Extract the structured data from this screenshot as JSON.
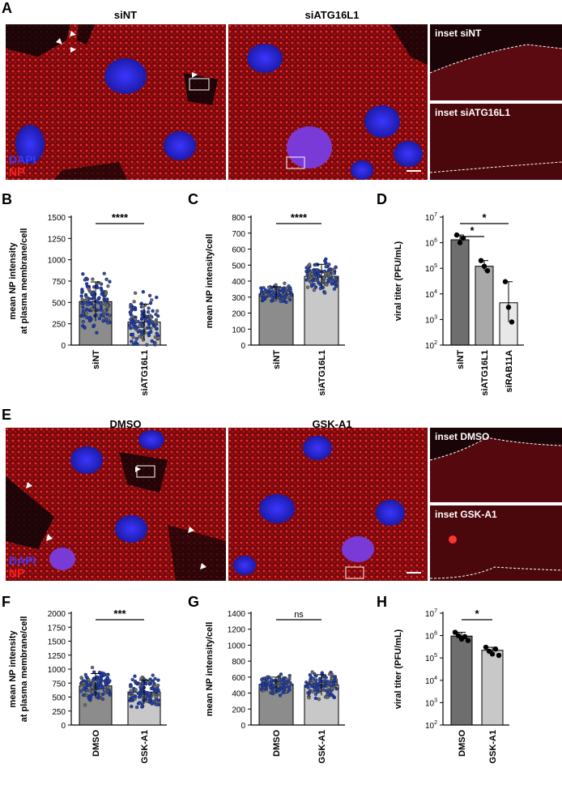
{
  "panel_labels": {
    "A": "A",
    "B": "B",
    "C": "C",
    "D": "D",
    "E": "E",
    "F": "F",
    "G": "G",
    "H": "H"
  },
  "panelA": {
    "title_left": "siNT",
    "title_mid": "siATG16L1",
    "inset_top": "inset siNT",
    "inset_bottom": "inset siATG16L1",
    "legend_dapi": "DAPI",
    "legend_np": "NP",
    "colors": {
      "dapi": "#2b2bff",
      "np": "#e01010",
      "background": "#0c0306"
    }
  },
  "panelE": {
    "title_left": "DMSO",
    "title_mid": "GSK-A1",
    "inset_top": "inset DMSO",
    "inset_bottom": "inset GSK-A1",
    "legend_dapi": "DAPI",
    "legend_np": "NP"
  },
  "chart_data": [
    {
      "id": "B",
      "type": "bar",
      "categories": [
        "siNT",
        "siATG16L1"
      ],
      "values": [
        510,
        270
      ],
      "errors": [
        230,
        210
      ],
      "ylabel_lines": [
        "mean NP intensity",
        "at plasma membrane/cell"
      ],
      "ylim": [
        0,
        1500
      ],
      "yticks": [
        0,
        250,
        500,
        750,
        1000,
        1250,
        1500
      ],
      "sig": [
        {
          "label": "****",
          "from": 0,
          "to": 1
        }
      ],
      "bar_colors": [
        "#8c8c8c",
        "#c8c8c8"
      ],
      "point_color": "#1f3fae",
      "log": false
    },
    {
      "id": "C",
      "type": "bar",
      "categories": [
        "siNT",
        "siATG16L1"
      ],
      "values": [
        320,
        430
      ],
      "errors": [
        45,
        75
      ],
      "ylabel_lines": [
        "mean NP intensity/cell"
      ],
      "ylim": [
        0,
        800
      ],
      "yticks": [
        0,
        100,
        200,
        300,
        400,
        500,
        600,
        700,
        800
      ],
      "sig": [
        {
          "label": "****",
          "from": 0,
          "to": 1
        }
      ],
      "bar_colors": [
        "#8c8c8c",
        "#c8c8c8"
      ],
      "point_color": "#1f3fae",
      "log": false
    },
    {
      "id": "D",
      "type": "bar",
      "categories": [
        "siNT",
        "siATG16L1",
        "siRAB11A"
      ],
      "values": [
        1300000,
        120000,
        4500
      ],
      "points": [
        [
          2000000,
          1000000,
          1500000
        ],
        [
          200000,
          120000,
          80000
        ],
        [
          30000,
          3000,
          800
        ]
      ],
      "ylabel_lines": [
        "viral titer (PFU/mL)"
      ],
      "ylim": [
        100,
        10000000
      ],
      "log": true,
      "yticks": [
        100,
        1000,
        10000,
        100000,
        1000000,
        10000000
      ],
      "sig": [
        {
          "label": "*",
          "from": 0,
          "to": 1
        },
        {
          "label": "*",
          "from": 0,
          "to": 2
        }
      ],
      "bar_colors": [
        "#6e6e6e",
        "#a8a8a8",
        "#e8e8e8"
      ]
    },
    {
      "id": "F",
      "type": "bar",
      "categories": [
        "DMSO",
        "GSK-A1"
      ],
      "values": [
        700,
        590
      ],
      "errors": [
        220,
        210
      ],
      "ylabel_lines": [
        "mean NP intensity",
        "at plasma membrane/cell"
      ],
      "ylim": [
        0,
        2000
      ],
      "yticks": [
        0,
        250,
        500,
        750,
        1000,
        1250,
        1500,
        1750,
        2000
      ],
      "sig": [
        {
          "label": "***",
          "from": 0,
          "to": 1
        }
      ],
      "bar_colors": [
        "#8c8c8c",
        "#c8c8c8"
      ],
      "point_color": "#1f3fae",
      "log": false
    },
    {
      "id": "G",
      "type": "bar",
      "categories": [
        "DMSO",
        "GSK-A1"
      ],
      "values": [
        510,
        500
      ],
      "errors": [
        90,
        130
      ],
      "ylabel_lines": [
        "mean NP intensity/cell"
      ],
      "ylim": [
        0,
        1400
      ],
      "yticks": [
        0,
        200,
        400,
        600,
        800,
        1000,
        1200,
        1400
      ],
      "sig": [
        {
          "label": "ns",
          "from": 0,
          "to": 1
        }
      ],
      "bar_colors": [
        "#8c8c8c",
        "#c8c8c8"
      ],
      "point_color": "#1f3fae",
      "log": false
    },
    {
      "id": "H",
      "type": "bar",
      "categories": [
        "DMSO",
        "GSK-A1"
      ],
      "values": [
        950000,
        220000
      ],
      "points": [
        [
          1400000,
          1000000,
          700000,
          900000,
          600000
        ],
        [
          300000,
          200000,
          150000,
          250000,
          130000
        ]
      ],
      "ylabel_lines": [
        "viral titer (PFU/mL)"
      ],
      "ylim": [
        100,
        10000000
      ],
      "log": true,
      "yticks": [
        100,
        1000,
        10000,
        100000,
        1000000,
        10000000
      ],
      "sig": [
        {
          "label": "*",
          "from": 0,
          "to": 1
        }
      ],
      "bar_colors": [
        "#6e6e6e",
        "#c8c8c8"
      ]
    }
  ]
}
